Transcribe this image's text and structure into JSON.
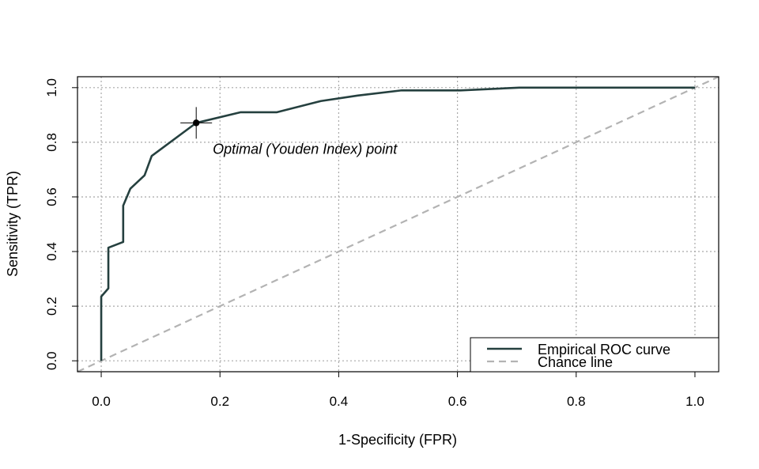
{
  "chart_data": {
    "type": "line",
    "title": "",
    "xlabel": "1-Specificity (FPR)",
    "ylabel": "Sensitivity (TPR)",
    "xlim": [
      -0.04,
      1.04
    ],
    "ylim": [
      -0.04,
      1.04
    ],
    "xticks": [
      0.0,
      0.2,
      0.4,
      0.6,
      0.8,
      1.0
    ],
    "yticks": [
      0.0,
      0.2,
      0.4,
      0.6,
      0.8,
      1.0
    ],
    "tick_labels": [
      "0.0",
      "0.2",
      "0.4",
      "0.6",
      "0.8",
      "1.0"
    ],
    "grid": true,
    "legend_position": "bottom-right",
    "series": [
      {
        "name": "Empirical ROC curve",
        "color": "#25403f",
        "style": "solid",
        "x": [
          0.0,
          0.0,
          0.0,
          0.012,
          0.012,
          0.037,
          0.037,
          0.049,
          0.073,
          0.085,
          0.16,
          0.235,
          0.296,
          0.37,
          0.432,
          0.506,
          0.605,
          0.704,
          1.0
        ],
        "y": [
          0.0,
          0.074,
          0.235,
          0.265,
          0.414,
          0.435,
          0.568,
          0.63,
          0.679,
          0.75,
          0.871,
          0.91,
          0.91,
          0.951,
          0.971,
          0.99,
          0.99,
          1.0,
          1.0
        ]
      },
      {
        "name": "Chance line",
        "color": "#b3b3b3",
        "style": "dashed",
        "x": [
          -0.04,
          1.04
        ],
        "y": [
          -0.04,
          1.04
        ]
      }
    ],
    "annotations": [
      {
        "text": "Optimal (Youden Index) point",
        "x": 0.16,
        "y": 0.871
      }
    ]
  }
}
